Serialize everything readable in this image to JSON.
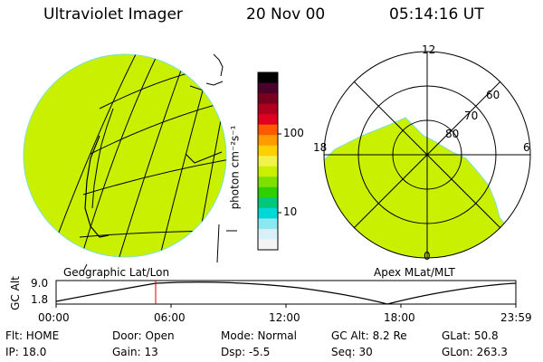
{
  "header": {
    "instrument": "Ultraviolet Imager",
    "date": "20 Nov 00",
    "time": "05:14:16 UT"
  },
  "colorbar": {
    "unit_label": "photon cm⁻²s⁻¹",
    "ticks": [
      "100",
      "10"
    ],
    "colors": [
      "#000000",
      "#4a002a",
      "#7a0020",
      "#b00020",
      "#e00020",
      "#ff5a00",
      "#ff9a00",
      "#ffd000",
      "#f2f24a",
      "#c8f000",
      "#7ee000",
      "#2fd000",
      "#00c87a",
      "#00d8d8",
      "#8ae8f0",
      "#d8f0f8",
      "#f4f4f4"
    ]
  },
  "left_panel": {
    "caption": "Geographic Lat/Lon",
    "disk_color": "#c8f000"
  },
  "right_panel": {
    "caption": "Apex MLat/MLT",
    "mlt_labels": {
      "top": "12",
      "right": "6",
      "bottom": "0",
      "left": "18"
    },
    "lat_labels": [
      "60",
      "70",
      "80"
    ]
  },
  "altitude_plot": {
    "ylabel": "GC Alt",
    "yticks": [
      "9.0",
      "1.8"
    ],
    "xticks": [
      "00:00",
      "06:00",
      "12:00",
      "18:00",
      "23:59"
    ],
    "current_marker_color": "#d00000"
  },
  "footer": {
    "flt": "Flt: HOME",
    "ip": "IP: 18.0",
    "door": "Door: Open",
    "gain": "Gain: 13",
    "mode": "Mode: Normal",
    "dsp": "Dsp:    -5.5",
    "gc_alt": "GC Alt: 8.2 Re",
    "seq": "Seq: 30",
    "glat": "GLat:   50.8",
    "glon": "GLon: 263.3"
  }
}
